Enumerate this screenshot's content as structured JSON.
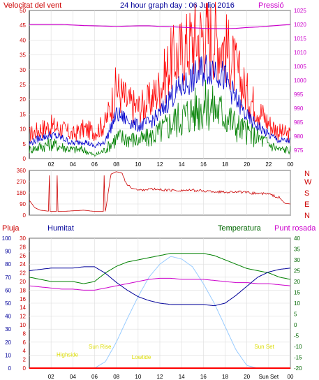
{
  "header": {
    "left": "Velocitat del vent",
    "title": "24 hour graph day : 06 Julio 2016",
    "right": "Pressió"
  },
  "footer": {
    "pluja": "Pluja",
    "humitat": "Humitat",
    "temperatura": "Temperatura",
    "punt_rosada": "Punt rosada"
  },
  "colors": {
    "wind_gust": "#ff0000",
    "wind_avg": "#0000cc",
    "wind_low": "#008000",
    "pressure": "#cc00cc",
    "direction": "#cc0000",
    "humidity": "#000099",
    "temperature": "#008000",
    "dewpoint": "#cc00cc",
    "solar": "#99ccff",
    "rain": "#ff0000",
    "sun_event": "#dddd00"
  },
  "x_ticks": [
    "02",
    "04",
    "06",
    "08",
    "10",
    "12",
    "14",
    "16",
    "18",
    "20",
    "22",
    "00"
  ],
  "x_ticks_bottom": [
    "02",
    "04",
    "06",
    "08",
    "10",
    "12",
    "14",
    "16",
    "18",
    "20",
    "Sun Set",
    "00"
  ],
  "chart_data": [
    {
      "type": "line",
      "ylabel": "Velocitat del vent",
      "y2label": "Pressió",
      "ylim": [
        0,
        50
      ],
      "yticks": [
        0,
        5,
        10,
        15,
        20,
        25,
        30,
        35,
        40,
        45,
        50
      ],
      "y2lim": [
        972,
        1025
      ],
      "y2ticks": [
        975,
        980,
        985,
        990,
        995,
        1000,
        1005,
        1010,
        1015,
        1020,
        1025
      ],
      "x": [
        0,
        1,
        2,
        3,
        4,
        5,
        6,
        7,
        8,
        9,
        10,
        11,
        12,
        13,
        14,
        15,
        16,
        17,
        18,
        19,
        20,
        21,
        22,
        23,
        24
      ],
      "series": [
        {
          "name": "gust",
          "axis": "y",
          "values": [
            8,
            10,
            11,
            10,
            8,
            10,
            9,
            12,
            24,
            19,
            17,
            19,
            24,
            33,
            36,
            40,
            42,
            41,
            38,
            30,
            22,
            17,
            12,
            9,
            8
          ]
        },
        {
          "name": "average",
          "axis": "y",
          "values": [
            5,
            7,
            8,
            7,
            5,
            6,
            4,
            6,
            15,
            13,
            11,
            12,
            15,
            21,
            24,
            27,
            30,
            31,
            27,
            20,
            14,
            11,
            8,
            6,
            6
          ]
        },
        {
          "name": "low",
          "axis": "y",
          "values": [
            3,
            4,
            5,
            4,
            3,
            3,
            1,
            3,
            7,
            7,
            6,
            7,
            9,
            12,
            14,
            16,
            18,
            17,
            15,
            11,
            9,
            7,
            5,
            3,
            3
          ]
        },
        {
          "name": "pressure",
          "axis": "y2",
          "values": [
            1020,
            1020,
            1020,
            1020,
            1019.8,
            1019.6,
            1019.5,
            1019.4,
            1019.3,
            1019.4,
            1019.5,
            1019.5,
            1019.3,
            1019.2,
            1019,
            1018.8,
            1018.6,
            1018.5,
            1018.5,
            1018.6,
            1018.9,
            1019.1,
            1019.4,
            1019.7,
            1020
          ]
        }
      ]
    },
    {
      "type": "line",
      "ylabel": "",
      "ylim": [
        0,
        360
      ],
      "yticks": [
        0,
        90,
        180,
        270,
        360
      ],
      "y2ticks": [
        "N",
        "W",
        "S",
        "E",
        "N"
      ],
      "x": [
        0,
        0.5,
        1,
        2,
        3,
        4,
        5,
        6,
        7,
        7.5,
        8,
        8.5,
        9,
        10,
        11,
        12,
        13,
        14,
        15,
        16,
        17,
        18,
        19,
        20,
        21,
        22,
        23,
        23.5,
        24
      ],
      "series": [
        {
          "name": "direction",
          "values": [
            120,
            60,
            40,
            30,
            30,
            35,
            40,
            30,
            30,
            330,
            350,
            340,
            240,
            200,
            210,
            205,
            200,
            200,
            200,
            195,
            190,
            185,
            190,
            180,
            175,
            170,
            140,
            95,
            90
          ]
        }
      ]
    },
    {
      "type": "line",
      "ylabel": "Humitat",
      "y_left_lim": [
        0,
        100
      ],
      "y_left_ticks": [
        0,
        10,
        20,
        30,
        40,
        50,
        60,
        70,
        80,
        90,
        100
      ],
      "y_left2_lim": [
        0,
        30
      ],
      "y_left2_ticks": [
        0,
        2,
        4,
        6,
        8,
        10,
        12,
        14,
        16,
        18,
        20,
        22,
        24,
        26,
        28,
        30
      ],
      "y2label": "Temperatura",
      "y2lim": [
        -20,
        40
      ],
      "y2ticks": [
        -20,
        -15,
        -10,
        -5,
        0,
        5,
        10,
        15,
        20,
        25,
        30,
        35,
        40
      ],
      "x": [
        0,
        1,
        2,
        3,
        4,
        5,
        6,
        7,
        8,
        9,
        10,
        11,
        12,
        13,
        14,
        15,
        16,
        17,
        18,
        19,
        20,
        21,
        22,
        23,
        24
      ],
      "series": [
        {
          "name": "humidity",
          "axis": "left",
          "values": [
            75,
            76,
            77,
            77,
            77,
            78,
            78,
            73,
            66,
            60,
            55,
            52,
            50,
            49,
            49,
            49,
            49,
            48,
            50,
            56,
            63,
            70,
            74,
            76,
            77
          ]
        },
        {
          "name": "temperature",
          "axis": "right",
          "values": [
            22,
            21,
            20,
            20,
            20,
            19,
            20,
            24,
            27,
            29,
            30,
            31,
            32,
            33,
            33,
            33,
            33,
            32,
            30,
            28,
            26,
            25,
            24,
            22,
            21
          ]
        },
        {
          "name": "dewpoint",
          "axis": "right",
          "values": [
            18,
            17.5,
            17,
            16.5,
            16.5,
            16,
            16,
            17,
            18,
            19,
            20,
            21,
            21.5,
            21.5,
            21,
            21,
            21,
            20.5,
            20,
            19.5,
            19.5,
            19,
            19,
            18.5,
            18
          ]
        },
        {
          "name": "solar",
          "axis": "left",
          "values": [
            0,
            0,
            0,
            0,
            0,
            0,
            0,
            5,
            20,
            38,
            55,
            70,
            80,
            86,
            84,
            78,
            65,
            50,
            32,
            14,
            2,
            0,
            0,
            0,
            0
          ]
        },
        {
          "name": "rain",
          "axis": "left2",
          "values": [
            0,
            0,
            0,
            0,
            0,
            0,
            0,
            0,
            0,
            0,
            0,
            0,
            0,
            0,
            0,
            0,
            0,
            0,
            0,
            0,
            0,
            0,
            0,
            0,
            0
          ]
        }
      ],
      "annotations": [
        {
          "text": "Highside",
          "x": 3.5,
          "y": 9
        },
        {
          "text": "Sun Rise",
          "x": 6.5,
          "y": 15
        },
        {
          "text": "Lowtide",
          "x": 10.3,
          "y": 7
        },
        {
          "text": "Sun Set",
          "x": 21.6,
          "y": 15
        }
      ]
    }
  ]
}
